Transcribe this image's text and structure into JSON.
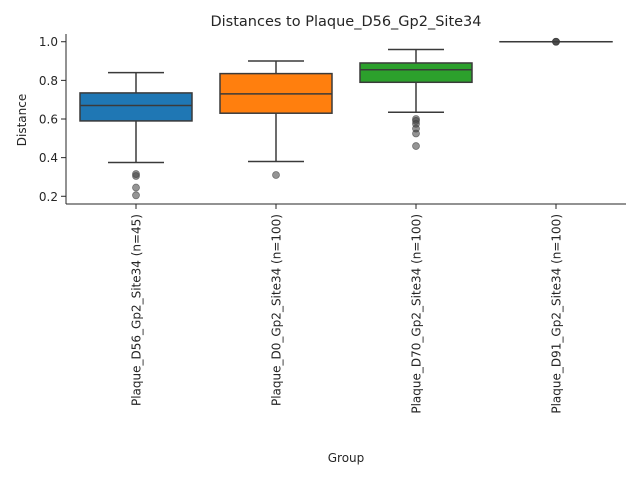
{
  "chart_data": {
    "type": "box",
    "title": "Distances to Plaque_D56_Gp2_Site34",
    "xlabel": "Group",
    "ylabel": "Distance",
    "ylim": [
      0.16,
      1.04
    ],
    "yticks": [
      "0.2",
      "0.4",
      "0.6",
      "0.8",
      "1.0"
    ],
    "ytick_values": [
      0.2,
      0.4,
      0.6,
      0.8,
      1.0
    ],
    "grid": false,
    "legend": "none",
    "categories": [
      "Plaque_D56_Gp2_Site34 (n=45)",
      "Plaque_D0_Gp2_Site34 (n=100)",
      "Plaque_D70_Gp2_Site34 (n=100)",
      "Plaque_D91_Gp2_Site34 (n=100)"
    ],
    "boxes": [
      {
        "color": "#1f77b4",
        "whisker_low": 0.375,
        "q1": 0.59,
        "median": 0.67,
        "q3": 0.735,
        "whisker_high": 0.84,
        "outliers": [
          0.315,
          0.305,
          0.245,
          0.205
        ]
      },
      {
        "color": "#ff7f0e",
        "whisker_low": 0.38,
        "q1": 0.63,
        "median": 0.73,
        "q3": 0.835,
        "whisker_high": 0.9,
        "outliers": [
          0.31
        ]
      },
      {
        "color": "#2ca02c",
        "whisker_low": 0.635,
        "q1": 0.79,
        "median": 0.855,
        "q3": 0.89,
        "whisker_high": 0.96,
        "outliers": [
          0.6,
          0.59,
          0.575,
          0.55,
          0.525,
          0.46
        ]
      },
      {
        "color": "#d62728",
        "whisker_low": 1.0,
        "q1": 1.0,
        "median": 1.0,
        "q3": 1.0,
        "whisker_high": 1.0,
        "outliers": [
          1.0,
          1.0,
          1.0
        ]
      }
    ]
  }
}
